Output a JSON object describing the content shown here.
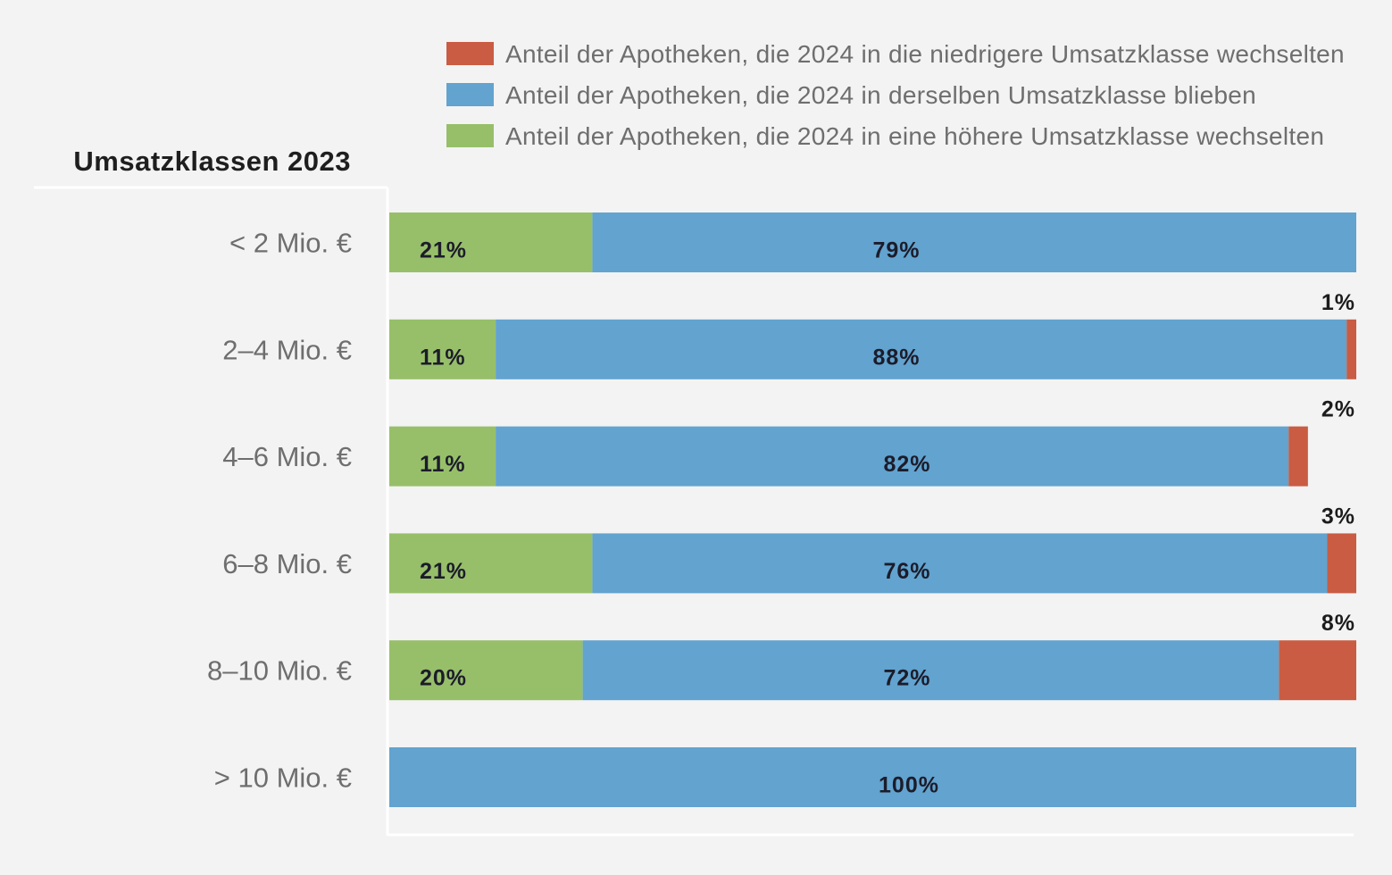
{
  "chart_data": {
    "type": "bar",
    "orientation": "horizontal",
    "stacked": true,
    "percent_stacked": true,
    "title": "Umsatzklassen 2023",
    "legend_position": "top-right",
    "categories": [
      "< 2 Mio. €",
      "2–4 Mio. €",
      "4–6 Mio. €",
      "6–8 Mio. €",
      "8–10 Mio. €",
      "> 10 Mio. €"
    ],
    "series": [
      {
        "name": "Anteil der Apotheken, die 2024 in eine höhere Umsatzklasse wechselten",
        "color": "#97bf6a",
        "values": [
          21,
          11,
          11,
          21,
          20,
          0
        ],
        "labels": [
          "21%",
          "11%",
          "11%",
          "21%",
          "20%",
          ""
        ]
      },
      {
        "name": "Anteil der Apotheken, die 2024 in derselben Umsatzklasse blieben",
        "color": "#62a3cf",
        "values": [
          79,
          88,
          82,
          76,
          72,
          100
        ],
        "labels": [
          "79%",
          "88%",
          "82%",
          "76%",
          "72%",
          "100%"
        ]
      },
      {
        "name": "Anteil der Apotheken, die 2024 in die niedrigere Umsatzklasse wechselten",
        "color": "#c95c43",
        "values": [
          0,
          1,
          2,
          3,
          8,
          0
        ],
        "labels": [
          "",
          "1%",
          "2%",
          "3%",
          "8%",
          ""
        ]
      }
    ],
    "legend_order": [
      2,
      1,
      0
    ],
    "xlim": [
      0,
      100
    ]
  }
}
